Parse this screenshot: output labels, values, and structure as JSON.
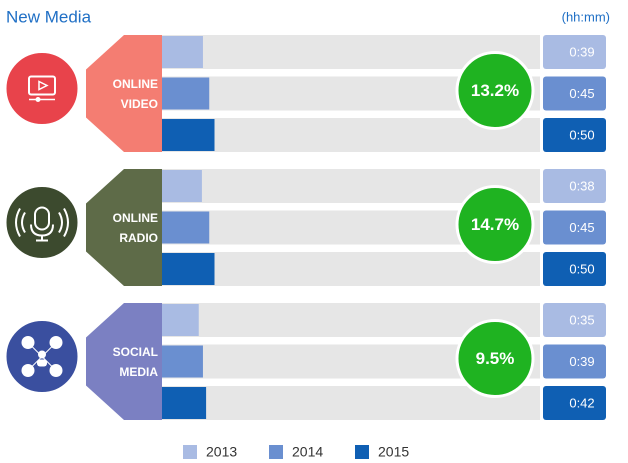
{
  "chart_data": {
    "type": "bar",
    "title": "New Media",
    "unit_label": "(hh:mm)",
    "categories": [
      "ONLINE VIDEO",
      "ONLINE RADIO",
      "SOCIAL MEDIA"
    ],
    "category_colors": [
      "#f47d72",
      "#5e6b48",
      "#7b80c2"
    ],
    "icon_colors": [
      "#e8434b",
      "#3c4a2e",
      "#3a4f9f"
    ],
    "series": [
      {
        "name": "2013",
        "color": "#a9bbe3",
        "values": [
          39,
          38,
          35
        ],
        "value_labels": [
          "0:39",
          "0:38",
          "0:35"
        ]
      },
      {
        "name": "2014",
        "color": "#6a8fd0",
        "values": [
          45,
          45,
          39
        ],
        "value_labels": [
          "0:45",
          "0:45",
          "0:39"
        ]
      },
      {
        "name": "2015",
        "color": "#0f5fb3",
        "values": [
          50,
          50,
          42
        ],
        "value_labels": [
          "0:50",
          "0:50",
          "0:42"
        ]
      }
    ],
    "growth": {
      "color": "#1fb321",
      "values": [
        13.2,
        14.7,
        9.5
      ],
      "value_labels": [
        "13.2%",
        "14.7%",
        "9.5%"
      ]
    },
    "xlim": [
      0,
      360
    ]
  }
}
